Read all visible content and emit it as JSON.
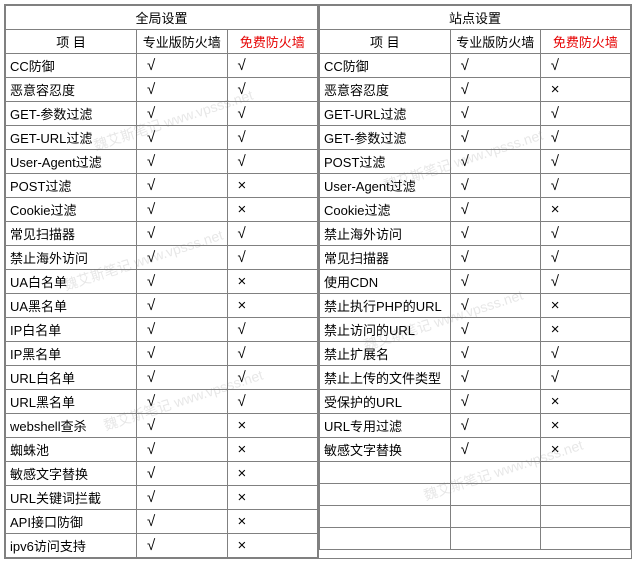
{
  "symbols": {
    "yes": "√",
    "no": "×"
  },
  "colors": {
    "free_header": "#e60000",
    "border": "#808080"
  },
  "watermark_text": "魏艾斯笔记 www.vpsss.net",
  "left": {
    "group_header": "全局设置",
    "col_item": "项    目",
    "col_pro": "专业版防火墙",
    "col_free": "免费防火墙",
    "rows": [
      {
        "item": "CC防御",
        "pro": "yes",
        "free": "yes"
      },
      {
        "item": "恶意容忍度",
        "pro": "yes",
        "free": "yes"
      },
      {
        "item": "GET-参数过滤",
        "pro": "yes",
        "free": "yes"
      },
      {
        "item": "GET-URL过滤",
        "pro": "yes",
        "free": "yes"
      },
      {
        "item": "User-Agent过滤",
        "pro": "yes",
        "free": "yes"
      },
      {
        "item": "POST过滤",
        "pro": "yes",
        "free": "no"
      },
      {
        "item": "Cookie过滤",
        "pro": "yes",
        "free": "no"
      },
      {
        "item": "常见扫描器",
        "pro": "yes",
        "free": "yes"
      },
      {
        "item": "禁止海外访问",
        "pro": "yes",
        "free": "yes"
      },
      {
        "item": "UA白名单",
        "pro": "yes",
        "free": "no"
      },
      {
        "item": "UA黑名单",
        "pro": "yes",
        "free": "no"
      },
      {
        "item": "IP白名单",
        "pro": "yes",
        "free": "yes"
      },
      {
        "item": "IP黑名单",
        "pro": "yes",
        "free": "yes"
      },
      {
        "item": "URL白名单",
        "pro": "yes",
        "free": "yes"
      },
      {
        "item": "URL黑名单",
        "pro": "yes",
        "free": "yes"
      },
      {
        "item": "webshell查杀",
        "pro": "yes",
        "free": "no"
      },
      {
        "item": "蜘蛛池",
        "pro": "yes",
        "free": "no"
      },
      {
        "item": "敏感文字替换",
        "pro": "yes",
        "free": "no"
      },
      {
        "item": "URL关键词拦截",
        "pro": "yes",
        "free": "no"
      },
      {
        "item": "API接口防御",
        "pro": "yes",
        "free": "no"
      },
      {
        "item": "ipv6访问支持",
        "pro": "yes",
        "free": "no"
      }
    ]
  },
  "right": {
    "group_header": "站点设置",
    "col_item": "项    目",
    "col_pro": "专业版防火墙",
    "col_free": "免费防火墙",
    "rows": [
      {
        "item": "CC防御",
        "pro": "yes",
        "free": "yes"
      },
      {
        "item": "恶意容忍度",
        "pro": "yes",
        "free": "no"
      },
      {
        "item": "GET-URL过滤",
        "pro": "yes",
        "free": "yes"
      },
      {
        "item": "GET-参数过滤",
        "pro": "yes",
        "free": "yes"
      },
      {
        "item": "POST过滤",
        "pro": "yes",
        "free": "yes"
      },
      {
        "item": "User-Agent过滤",
        "pro": "yes",
        "free": "yes"
      },
      {
        "item": "Cookie过滤",
        "pro": "yes",
        "free": "no"
      },
      {
        "item": "禁止海外访问",
        "pro": "yes",
        "free": "yes"
      },
      {
        "item": "常见扫描器",
        "pro": "yes",
        "free": "yes"
      },
      {
        "item": "使用CDN",
        "pro": "yes",
        "free": "yes"
      },
      {
        "item": "禁止执行PHP的URL",
        "pro": "yes",
        "free": "no"
      },
      {
        "item": "禁止访问的URL",
        "pro": "yes",
        "free": "no"
      },
      {
        "item": "禁止扩展名",
        "pro": "yes",
        "free": "yes"
      },
      {
        "item": "禁止上传的文件类型",
        "pro": "yes",
        "free": "yes"
      },
      {
        "item": "受保护的URL",
        "pro": "yes",
        "free": "no"
      },
      {
        "item": "URL专用过滤",
        "pro": "yes",
        "free": "no"
      },
      {
        "item": "敏感文字替换",
        "pro": "yes",
        "free": "no"
      },
      {
        "item": "",
        "pro": "",
        "free": ""
      },
      {
        "item": "",
        "pro": "",
        "free": ""
      },
      {
        "item": "",
        "pro": "",
        "free": ""
      },
      {
        "item": "",
        "pro": "",
        "free": ""
      }
    ]
  }
}
